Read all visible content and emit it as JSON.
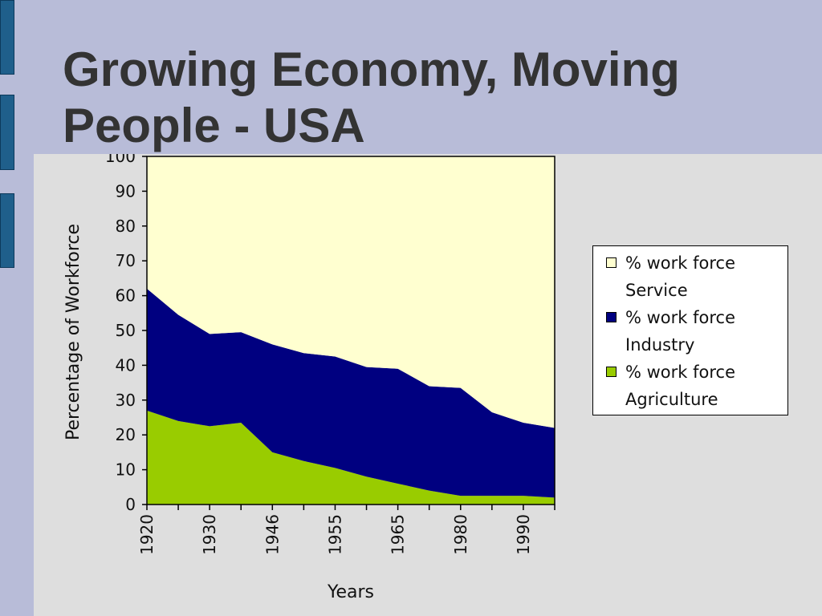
{
  "slide": {
    "title_line1": "Growing Economy, Moving",
    "title_line2": "People - USA"
  },
  "colors": {
    "background": "#b8bcd8",
    "accent": "#1f5f8b",
    "panel": "#dedede",
    "service": "#ffffd0",
    "industry": "#000080",
    "agriculture": "#99cc00"
  },
  "chart_data": {
    "type": "area",
    "stacked": true,
    "x": [
      "1920",
      "1925",
      "1930",
      "1935",
      "1946",
      "1950",
      "1955",
      "1960",
      "1965",
      "1970",
      "1980",
      "1985",
      "1990",
      "1995"
    ],
    "xticks": [
      "1920",
      "1930",
      "1946",
      "1955",
      "1965",
      "1980",
      "1990"
    ],
    "xlabel": "Years",
    "ylabel": "Percentage of Workforce",
    "ylim": [
      0,
      100
    ],
    "yticks": [
      0,
      10,
      20,
      30,
      40,
      50,
      60,
      70,
      80,
      90,
      100
    ],
    "series": [
      {
        "name_line1": "% work force",
        "name_line2": "Agriculture",
        "color": "#99cc00",
        "values": [
          27,
          24,
          22.5,
          23.5,
          15,
          12.5,
          10.5,
          8,
          6,
          4,
          2.5,
          2.5,
          2.5,
          2
        ]
      },
      {
        "name_line1": "% work force",
        "name_line2": "Industry",
        "color": "#000080",
        "values": [
          35,
          30.5,
          26.5,
          26,
          31,
          31,
          32,
          31.5,
          33,
          30,
          31,
          24,
          21,
          20
        ]
      },
      {
        "name_line1": "% work force",
        "name_line2": "Service",
        "color": "#ffffd0",
        "values": [
          38,
          45.5,
          51,
          50.5,
          54,
          56.5,
          57.5,
          60.5,
          61,
          66,
          66.5,
          73.5,
          76.5,
          78
        ]
      }
    ],
    "legend_position": "right",
    "grid": false
  }
}
